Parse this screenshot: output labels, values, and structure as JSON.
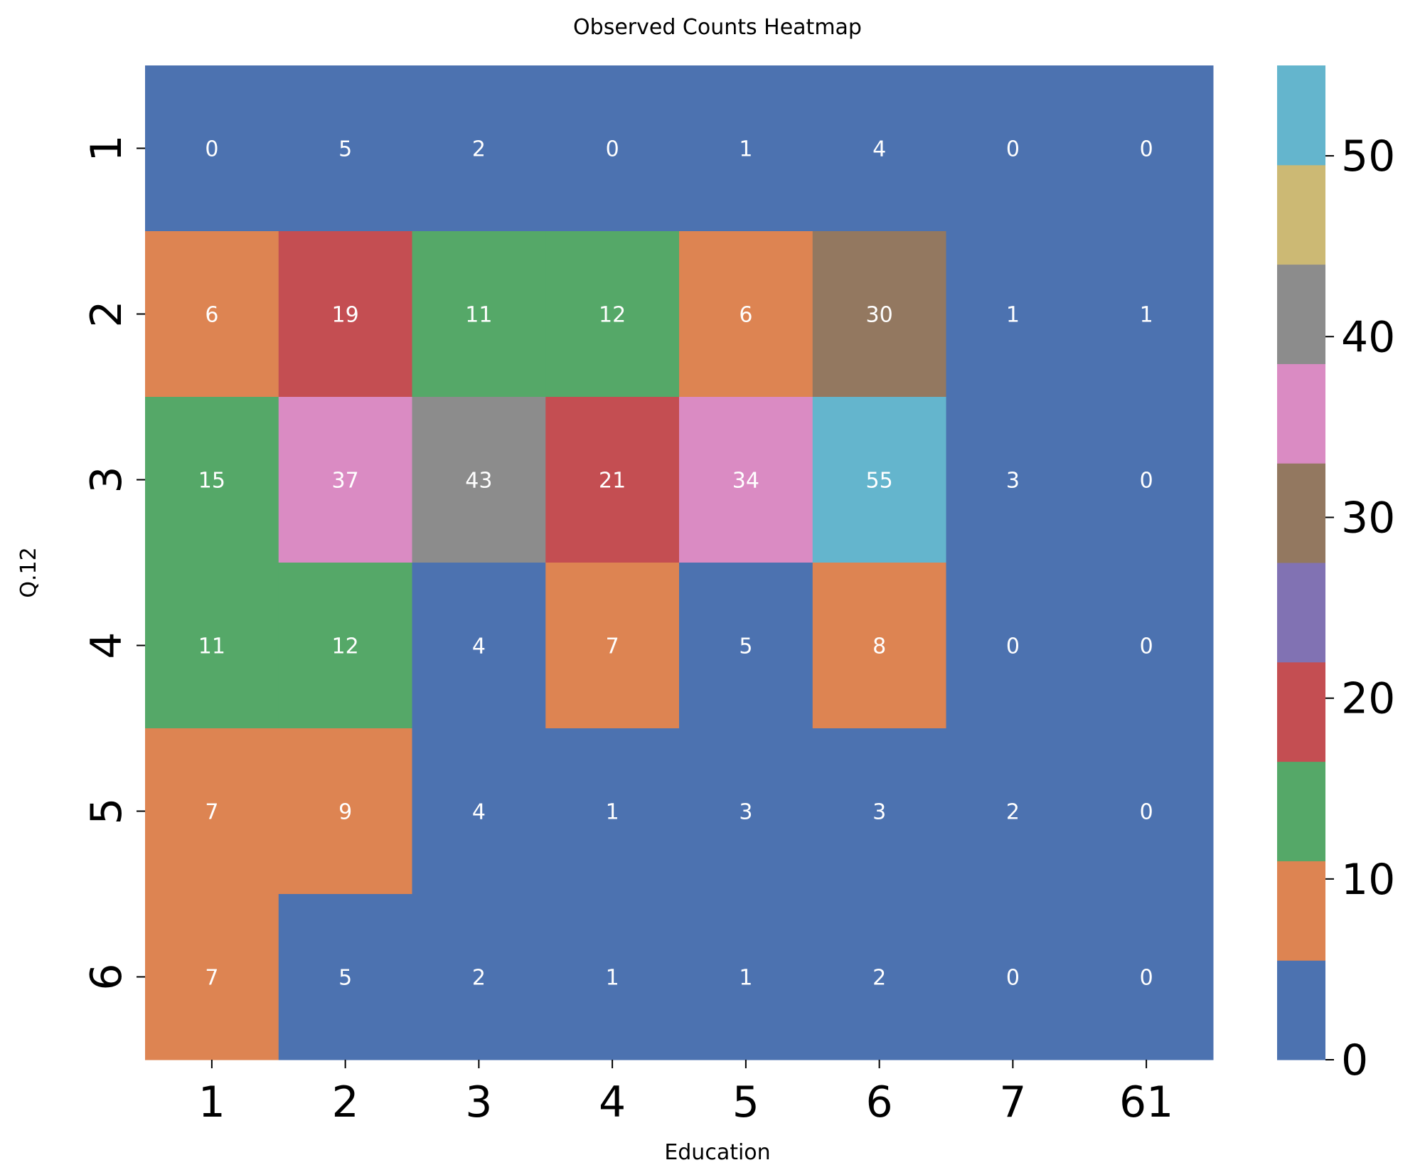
{
  "chart_data": {
    "type": "heatmap",
    "title": "Observed Counts Heatmap",
    "xlabel": "Education",
    "ylabel": "Q.12",
    "x_categories": [
      "1",
      "2",
      "3",
      "4",
      "5",
      "6",
      "7",
      "61"
    ],
    "y_categories": [
      "1",
      "2",
      "3",
      "4",
      "5",
      "6"
    ],
    "values": [
      [
        0,
        5,
        2,
        0,
        1,
        4,
        0,
        0
      ],
      [
        6,
        19,
        11,
        12,
        6,
        30,
        1,
        1
      ],
      [
        15,
        37,
        43,
        21,
        34,
        55,
        3,
        0
      ],
      [
        11,
        12,
        4,
        7,
        5,
        8,
        0,
        0
      ],
      [
        7,
        9,
        4,
        1,
        3,
        3,
        2,
        0
      ],
      [
        7,
        5,
        2,
        1,
        1,
        2,
        0,
        0
      ]
    ],
    "colorbar": {
      "min": 0,
      "max": 55,
      "ticks": [
        0,
        10,
        20,
        30,
        40,
        50
      ],
      "bins": [
        {
          "from": 0,
          "to": 5.5,
          "color": "#4c72b0"
        },
        {
          "from": 5.5,
          "to": 11,
          "color": "#dd8452"
        },
        {
          "from": 11,
          "to": 16.5,
          "color": "#55a868"
        },
        {
          "from": 16.5,
          "to": 22,
          "color": "#c44e52"
        },
        {
          "from": 22,
          "to": 27.5,
          "color": "#8172b3"
        },
        {
          "from": 27.5,
          "to": 33,
          "color": "#937860"
        },
        {
          "from": 33,
          "to": 38.5,
          "color": "#da8bc3"
        },
        {
          "from": 38.5,
          "to": 44,
          "color": "#8c8c8c"
        },
        {
          "from": 44,
          "to": 49.5,
          "color": "#ccb974"
        },
        {
          "from": 49.5,
          "to": 55,
          "color": "#64b5cd"
        }
      ]
    },
    "grid": false,
    "legend": "colorbar-right"
  }
}
